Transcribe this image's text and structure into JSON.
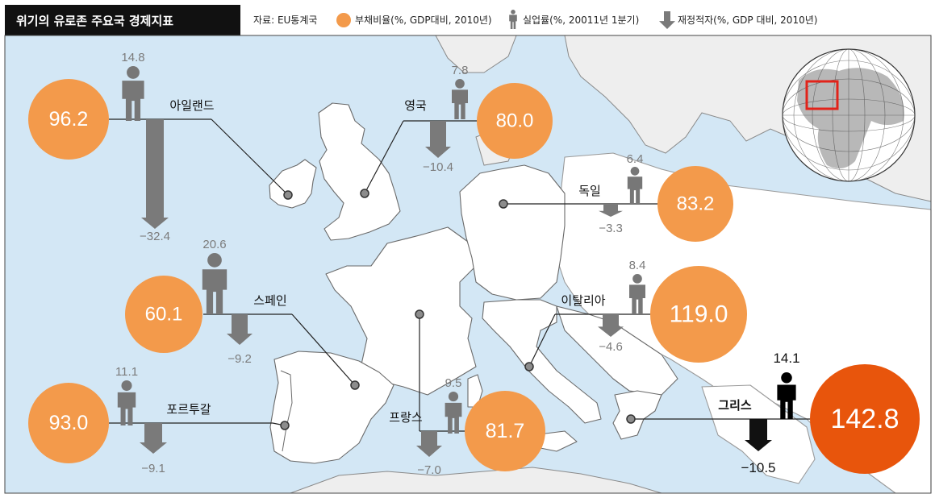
{
  "title": "위기의 유로존 주요국 경제지표",
  "source": "자료: EU통계국",
  "legend": {
    "debt": "부채비율(%, GDP대비, 2010년)",
    "unemployment": "실업률(%, 20011년 1분기)",
    "deficit": "재정적자(%, GDP 대비, 2010년)"
  },
  "colors": {
    "bubble": "#f39a4b",
    "bubble_highlight": "#e8550c",
    "figure": "#777777",
    "figure_highlight": "#000000",
    "arrow": "#7a7a7a",
    "arrow_highlight": "#111111",
    "title_bg": "#111111",
    "highlight_label": "#e8550c",
    "globe_box": "#e2231a"
  },
  "icons": {
    "debt": "orange-circle-icon",
    "unemployment": "person-icon",
    "deficit": "down-arrow-icon",
    "globe": "globe-icon"
  },
  "countries": [
    {
      "id": "ireland",
      "name": "아일랜드",
      "debt": "96.2",
      "unemployment": "14.8",
      "deficit": "−32.4",
      "highlight": false
    },
    {
      "id": "uk",
      "name": "영국",
      "debt": "80.0",
      "unemployment": "7.8",
      "deficit": "−10.4",
      "highlight": false
    },
    {
      "id": "germany",
      "name": "독일",
      "debt": "83.2",
      "unemployment": "6.4",
      "deficit": "−3.3",
      "highlight": false
    },
    {
      "id": "spain",
      "name": "스페인",
      "debt": "60.1",
      "unemployment": "20.6",
      "deficit": "−9.2",
      "highlight": false
    },
    {
      "id": "italy",
      "name": "이탈리아",
      "debt": "119.0",
      "unemployment": "8.4",
      "deficit": "−4.6",
      "highlight": false
    },
    {
      "id": "portugal",
      "name": "포르투갈",
      "debt": "93.0",
      "unemployment": "11.1",
      "deficit": "−9.1",
      "highlight": false
    },
    {
      "id": "france",
      "name": "프랑스",
      "debt": "81.7",
      "unemployment": "9.5",
      "deficit": "−7.0",
      "highlight": false
    },
    {
      "id": "greece",
      "name": "그리스",
      "debt": "142.8",
      "unemployment": "14.1",
      "deficit": "−10.5",
      "highlight": true
    }
  ]
}
